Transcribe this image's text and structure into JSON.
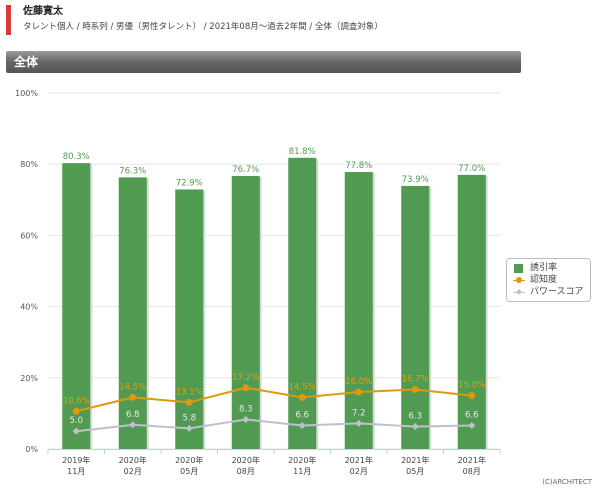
{
  "header": {
    "name": "佐藤寛太",
    "breadcrumb": "タレント個人 / 時系列 / 男優（男性タレント） / 2021年08月～過去2年間 / 全体（調査対象）"
  },
  "section_title": "全体",
  "copyright": "(C)ARCHITECT",
  "chart_data": {
    "type": "bar",
    "categories": [
      "2019年\n11月",
      "2020年\n02月",
      "2020年\n05月",
      "2020年\n08月",
      "2020年\n11月",
      "2021年\n02月",
      "2021年\n05月",
      "2021年\n08月"
    ],
    "ylim": [
      0,
      100
    ],
    "yticks": [
      "0%",
      "20%",
      "40%",
      "60%",
      "80%",
      "100%"
    ],
    "grid": true,
    "legend_position": "right",
    "series": [
      {
        "name": "誘引率",
        "kind": "bar",
        "color": "#519a52",
        "labels": [
          "80.3%",
          "76.3%",
          "72.9%",
          "76.7%",
          "81.8%",
          "77.8%",
          "73.9%",
          "77.0%"
        ],
        "values": [
          80.3,
          76.3,
          72.9,
          76.7,
          81.8,
          77.8,
          73.9,
          77.0
        ]
      },
      {
        "name": "認知度",
        "kind": "line",
        "color": "#e0980f",
        "labels": [
          "10.6%",
          "14.5%",
          "13.1%",
          "17.2%",
          "14.5%",
          "16.0%",
          "16.7%",
          "15.0%"
        ],
        "values": [
          10.6,
          14.5,
          13.1,
          17.2,
          14.5,
          16.0,
          16.7,
          15.0
        ]
      },
      {
        "name": "パワースコア",
        "kind": "line",
        "color": "#c0c0cc",
        "labels": [
          "5.0",
          "6.8",
          "5.8",
          "8.3",
          "6.6",
          "7.2",
          "6.3",
          "6.6"
        ],
        "values": [
          5.0,
          6.8,
          5.8,
          8.3,
          6.6,
          7.2,
          6.3,
          6.6
        ]
      }
    ]
  }
}
